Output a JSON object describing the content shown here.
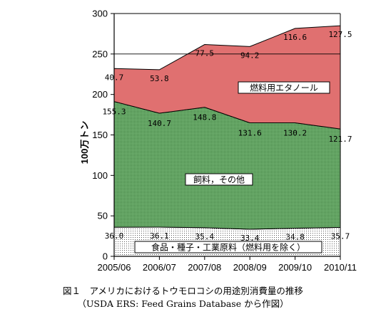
{
  "chart_data": {
    "type": "area",
    "stacked": true,
    "categories": [
      "2005/06",
      "2006/07",
      "2007/08",
      "2008/09",
      "2009/10",
      "2010/11"
    ],
    "series": [
      {
        "name": "食品・種子・工業原料（燃料用を除く）",
        "values": [
          36.0,
          36.1,
          35.4,
          33.4,
          34.8,
          35.7
        ],
        "color": "#ffffff",
        "pattern": "dots-sparse"
      },
      {
        "name": "飼料，その他",
        "values": [
          155.3,
          140.7,
          148.8,
          131.6,
          130.2,
          121.7
        ],
        "color": "#6fb06f",
        "pattern": "dots-dense"
      },
      {
        "name": "燃料用エタノール",
        "values": [
          40.7,
          53.8,
          77.5,
          94.2,
          116.6,
          127.5
        ],
        "color": "#e07070",
        "pattern": "solid"
      }
    ],
    "value_labels": [
      [
        "36.0",
        "36.1",
        "35.4",
        "33.4",
        "34.8",
        "35.7"
      ],
      [
        "155.3",
        "140.7",
        "148.8",
        "131.6",
        "130.2",
        "121.7"
      ],
      [
        "40.7",
        "53.8",
        "77.5",
        "94.2",
        "116.6",
        "127.5"
      ]
    ],
    "ylabel": "100万トン",
    "xlabel": "",
    "ylim": [
      0,
      300
    ],
    "yticks": [
      0,
      50,
      100,
      150,
      200,
      250,
      300
    ],
    "grid": false
  },
  "caption": {
    "title": "図１　アメリカにおけるトウモロコシの用途別消費量の推移",
    "source": "（USDA ERS: Feed Grains Database から作図）"
  }
}
